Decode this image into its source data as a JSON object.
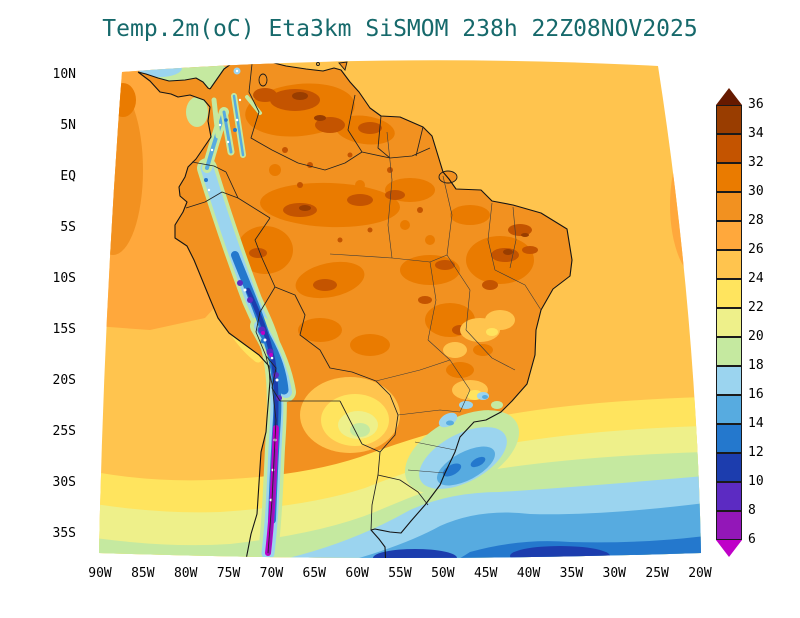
{
  "page": {
    "background": "#ffffff"
  },
  "header": {
    "title": "Temp.2m(oC) Eta3km SiSMOM 238h 22Z08NOV2025",
    "title_color": "#16696b"
  },
  "chart_data": {
    "type": "heatmap",
    "title": "Temp.2m(oC) Eta3km SiSMOM 238h 22Z08NOV2025",
    "variable": "Temp.2m",
    "units": "oC",
    "model": "Eta3km SiSMOM",
    "forecast_hour": "238h",
    "valid_time": "22Z08NOV2025",
    "region_depicted": "South America and adjacent oceans",
    "x_ticks": [
      "90W",
      "85W",
      "80W",
      "75W",
      "70W",
      "65W",
      "60W",
      "55W",
      "50W",
      "45W",
      "40W",
      "35W",
      "30W",
      "25W",
      "20W"
    ],
    "y_ticks": [
      "10N",
      "5N",
      "EQ",
      "5S",
      "10S",
      "15S",
      "20S",
      "25S",
      "30S",
      "35S"
    ],
    "xlim": [
      "90W",
      "20W"
    ],
    "ylim": [
      "35S",
      "10N"
    ],
    "grid": false,
    "legend_position": "right",
    "colorbar": {
      "orientation": "vertical",
      "extend": "both",
      "levels": [
        36,
        34,
        32,
        30,
        28,
        26,
        24,
        22,
        20,
        18,
        16,
        14,
        12,
        10,
        8,
        6
      ],
      "colors_top_to_bottom": [
        "#661a00",
        "#993d00",
        "#c45400",
        "#ea7b00",
        "#f29120",
        "#ffa83c",
        "#ffc44e",
        "#ffe45e",
        "#eef08a",
        "#c5e9a0",
        "#9bd4ef",
        "#57abe0",
        "#2478cd",
        "#1c3dae",
        "#5c2bc2",
        "#9317b8",
        "#bf00c8"
      ]
    },
    "features": [
      "Hot air 28-34 oC over the Amazon basin, Venezuela and interior northeast Brazil, with spots above 34 oC",
      "Dominant continental values 28-30 oC; tropical oceans 24-28 oC",
      "Narrow cold strip 6-16 oC along the Andes, values below 6 oC (magenta) over the high Andes of Chile/Bolivia",
      "Cool tongue 18-22 oC over Paraguay and northern Argentina",
      "Cold pocket 14-18 oC over southeastern Brazil and the adjacent Atlantic",
      "Southward cooling over the South Atlantic from 22 oC down to 10-14 oC at the bottom of the domain",
      "Mild patches 16-20 oC over the southwest Caribbean near Panama/Colombia"
    ]
  }
}
